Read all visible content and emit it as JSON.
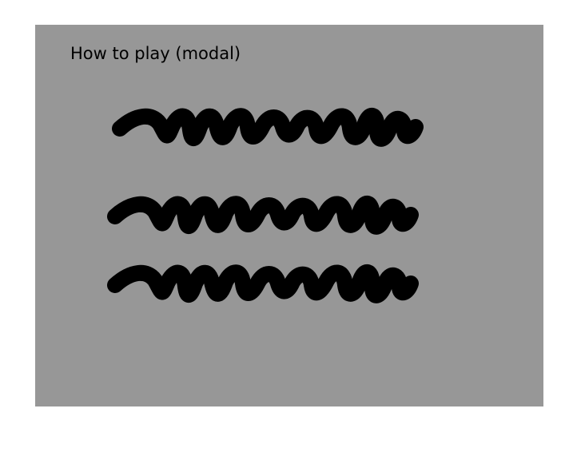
{
  "modal": {
    "title": "How to play (modal)",
    "background": "#979797",
    "placeholder_lines": [
      {
        "name": "instruction-line-1",
        "color": "#000000"
      },
      {
        "name": "instruction-line-2",
        "color": "#000000"
      },
      {
        "name": "instruction-line-3",
        "color": "#000000"
      }
    ]
  }
}
